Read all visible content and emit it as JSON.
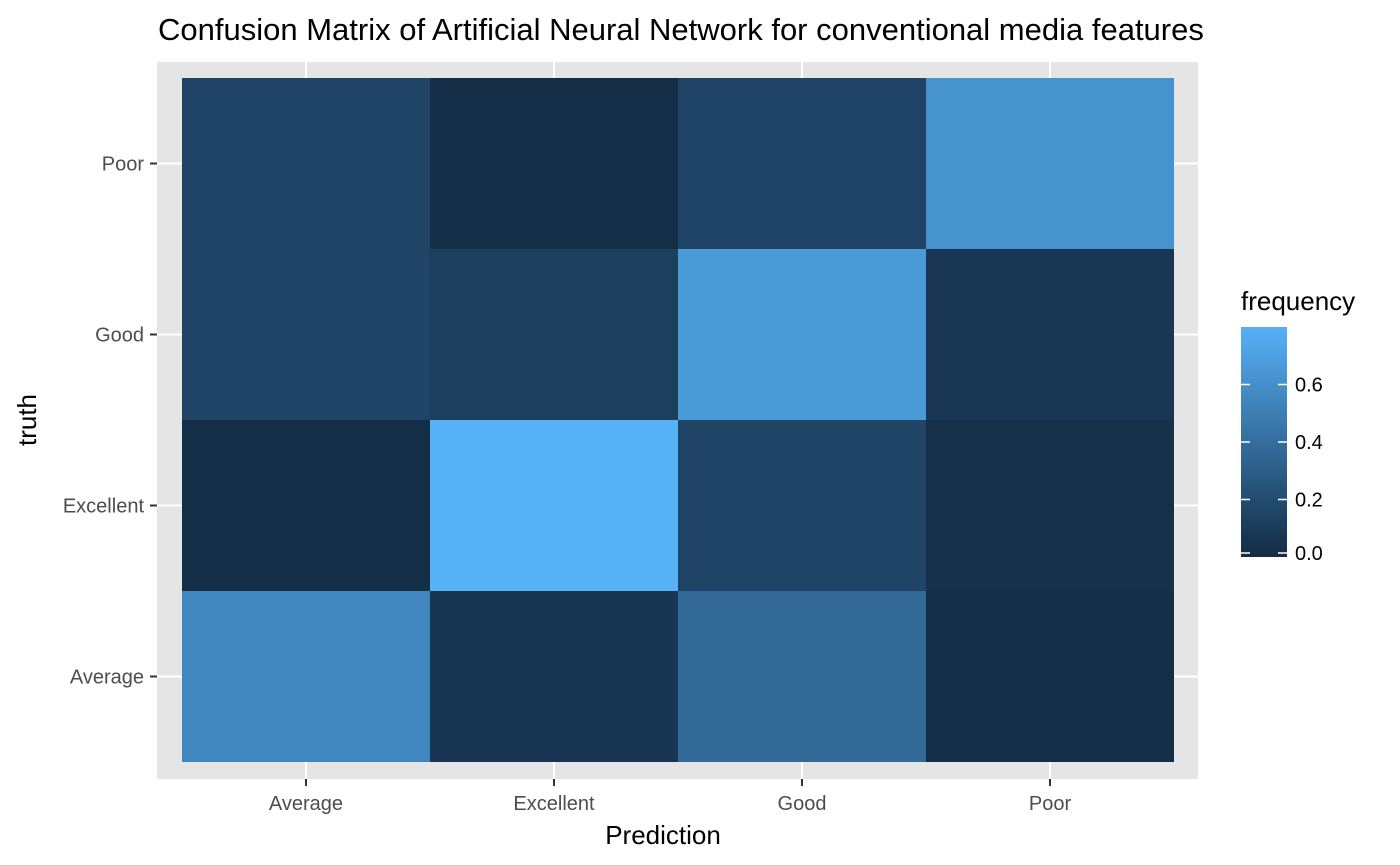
{
  "chart_data": {
    "type": "heatmap",
    "title": "Confusion Matrix of Artificial Neural Network for conventional media features",
    "xlabel": "Prediction",
    "ylabel": "truth",
    "x_categories": [
      "Average",
      "Excellent",
      "Good",
      "Poor"
    ],
    "y_categories": [
      "Average",
      "Excellent",
      "Good",
      "Poor"
    ],
    "cells": [
      {
        "truth": "Average",
        "prediction": "Average",
        "value": 0.55
      },
      {
        "truth": "Average",
        "prediction": "Excellent",
        "value": 0.06
      },
      {
        "truth": "Average",
        "prediction": "Good",
        "value": 0.37
      },
      {
        "truth": "Average",
        "prediction": "Poor",
        "value": 0.02
      },
      {
        "truth": "Excellent",
        "prediction": "Average",
        "value": 0.02
      },
      {
        "truth": "Excellent",
        "prediction": "Excellent",
        "value": 0.8
      },
      {
        "truth": "Excellent",
        "prediction": "Good",
        "value": 0.15
      },
      {
        "truth": "Excellent",
        "prediction": "Poor",
        "value": 0.03
      },
      {
        "truth": "Good",
        "prediction": "Average",
        "value": 0.15
      },
      {
        "truth": "Good",
        "prediction": "Excellent",
        "value": 0.12
      },
      {
        "truth": "Good",
        "prediction": "Good",
        "value": 0.66
      },
      {
        "truth": "Good",
        "prediction": "Poor",
        "value": 0.07
      },
      {
        "truth": "Poor",
        "prediction": "Average",
        "value": 0.15
      },
      {
        "truth": "Poor",
        "prediction": "Excellent",
        "value": 0.02
      },
      {
        "truth": "Poor",
        "prediction": "Good",
        "value": 0.15
      },
      {
        "truth": "Poor",
        "prediction": "Poor",
        "value": 0.62
      }
    ],
    "legend": {
      "title": "frequency",
      "ticks": [
        "0.0",
        "0.2",
        "0.4",
        "0.6"
      ],
      "tick_values": [
        0.0,
        0.2,
        0.4,
        0.6
      ],
      "range": [
        0.0,
        0.8
      ],
      "placement": "right"
    },
    "colors": {
      "low": "#132B43",
      "high": "#56B1F7",
      "panel_background": "#e5e5e5",
      "gridline": "#ffffff"
    },
    "grid": true
  }
}
